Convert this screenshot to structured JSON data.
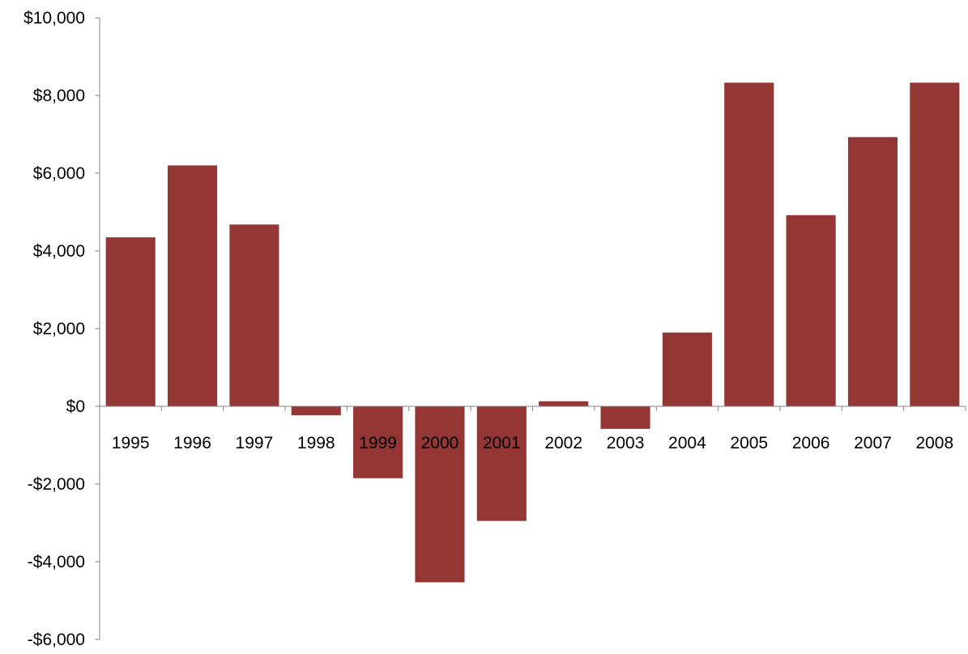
{
  "chart_data": {
    "type": "bar",
    "title": "",
    "xlabel": "",
    "ylabel": "",
    "categories": [
      "1995",
      "1996",
      "1997",
      "1998",
      "1999",
      "2000",
      "2001",
      "2002",
      "2003",
      "2004",
      "2005",
      "2006",
      "2007",
      "2008"
    ],
    "values": [
      4350,
      6200,
      4680,
      -230,
      -1850,
      -4530,
      -2950,
      130,
      -580,
      1900,
      8330,
      4920,
      6930,
      8330
    ],
    "ylim": [
      -6000,
      10000
    ],
    "y_ticks": [
      10000,
      8000,
      6000,
      4000,
      2000,
      0,
      -2000,
      -4000,
      -6000
    ],
    "y_tick_labels": [
      "$10,000",
      "$8,000",
      "$6,000",
      "$4,000",
      "$2,000",
      "$0",
      "-$2,000",
      "-$4,000",
      "-$6,000"
    ],
    "grid": false,
    "legend": "none",
    "bar_color": "#943634",
    "axis_color": "#868686"
  }
}
